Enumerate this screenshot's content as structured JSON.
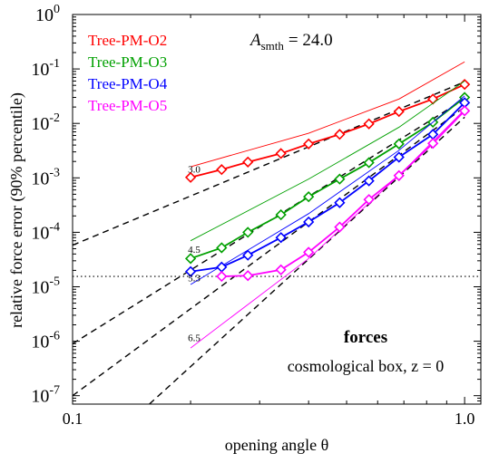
{
  "chart_data": {
    "type": "line",
    "title": "",
    "xlabel": "opening angle  θ",
    "ylabel": "relative force error (90% percentile)",
    "xscale": "log",
    "yscale": "log",
    "xlim": [
      0.1,
      1.1
    ],
    "ylim": [
      7e-08,
      1.0
    ],
    "x_ticks": [
      {
        "value": 0.1,
        "label": "0.1"
      },
      {
        "value": 1.0,
        "label": "1.0"
      }
    ],
    "y_ticks": [
      {
        "value": 1e-07,
        "base": "10",
        "exp": "-7"
      },
      {
        "value": 1e-06,
        "base": "10",
        "exp": "-6"
      },
      {
        "value": 1e-05,
        "base": "10",
        "exp": "-5"
      },
      {
        "value": 0.0001,
        "base": "10",
        "exp": "-4"
      },
      {
        "value": 0.001,
        "base": "10",
        "exp": "-3"
      },
      {
        "value": 0.01,
        "base": "10",
        "exp": "-2"
      },
      {
        "value": 0.1,
        "base": "10",
        "exp": "-1"
      },
      {
        "value": 1.0,
        "base": "10",
        "exp": "0"
      }
    ],
    "legend_position": "top-left",
    "series": [
      {
        "name": "Tree-PM-O2",
        "color": "#ff0000",
        "marker": "diamond",
        "x": [
          0.2,
          0.24,
          0.28,
          0.34,
          0.4,
          0.48,
          0.57,
          0.68,
          0.83,
          1.0
        ],
        "y": [
          0.00102,
          0.00142,
          0.00195,
          0.0028,
          0.0042,
          0.0063,
          0.0098,
          0.0165,
          0.028,
          0.052
        ],
        "thin_line": {
          "x": [
            0.2,
            0.4,
            0.68,
            1.0
          ],
          "y": [
            0.0016,
            0.0066,
            0.028,
            0.135
          ]
        }
      },
      {
        "name": "Tree-PM-O3",
        "color": "#00a000",
        "marker": "diamond",
        "x": [
          0.2,
          0.24,
          0.28,
          0.34,
          0.4,
          0.48,
          0.57,
          0.68,
          0.83,
          1.0
        ],
        "y": [
          3.3e-05,
          5.2e-05,
          0.0001,
          0.00021,
          0.00045,
          0.00095,
          0.0019,
          0.0042,
          0.0105,
          0.03
        ],
        "thin_line": {
          "x": [
            0.2,
            0.4,
            0.68,
            1.0
          ],
          "y": [
            7e-05,
            0.00095,
            0.0085,
            0.06
          ]
        }
      },
      {
        "name": "Tree-PM-O4",
        "color": "#0000ff",
        "marker": "diamond",
        "x": [
          0.2,
          0.24,
          0.28,
          0.34,
          0.4,
          0.48,
          0.57,
          0.68,
          0.83,
          1.0
        ],
        "y": [
          1.9e-05,
          2.3e-05,
          3.8e-05,
          8e-05,
          0.000155,
          0.00035,
          0.00088,
          0.0024,
          0.0063,
          0.024
        ],
        "thin_line": {
          "x": [
            0.2,
            0.4,
            0.68,
            1.0
          ],
          "y": [
            1.1e-05,
            0.00022,
            0.0032,
            0.032
          ]
        }
      },
      {
        "name": "Tree-PM-O5",
        "color": "#ff00ff",
        "marker": "diamond",
        "x": [
          0.24,
          0.28,
          0.34,
          0.4,
          0.48,
          0.57,
          0.68,
          0.83,
          1.0
        ],
        "y": [
          1.55e-05,
          1.6e-05,
          2.05e-05,
          4.3e-05,
          0.000125,
          0.0004,
          0.0011,
          0.0043,
          0.017
        ],
        "thin_line": {
          "x": [
            0.2,
            0.4,
            0.68,
            1.0
          ],
          "y": [
            7.5e-07,
            3.3e-05,
            0.0011,
            0.018
          ]
        }
      }
    ],
    "reference_lines": [
      {
        "label": "3.0",
        "label_at": [
          0.2,
          0.00125
        ],
        "x": [
          0.1,
          1.0
        ],
        "y": [
          5.8e-05,
          0.058
        ],
        "style": "dashed"
      },
      {
        "label": "4.5",
        "label_at": [
          0.2,
          4.2e-05
        ],
        "x": [
          0.1,
          1.0
        ],
        "y": [
          9e-07,
          0.028
        ],
        "style": "dashed"
      },
      {
        "label": "5.3",
        "label_at": [
          0.2,
          1.25e-05
        ],
        "x": [
          0.1,
          1.0
        ],
        "y": [
          1e-07,
          0.02
        ],
        "style": "dashed"
      },
      {
        "label": "6.5",
        "label_at": [
          0.2,
          1e-06
        ],
        "x": [
          0.157,
          1.0
        ],
        "y": [
          7e-08,
          0.013
        ],
        "style": "dashed"
      }
    ],
    "horizontal_lines": [
      {
        "y": 1.55e-05,
        "style": "dotted",
        "color": "#000000"
      }
    ],
    "annotations": {
      "smoothing_symbol": "A",
      "smoothing_subscript": "smth",
      "smoothing_value": "= 24.0",
      "bold_label": "forces",
      "subtitle_label": "cosmological box, z = 0"
    }
  }
}
